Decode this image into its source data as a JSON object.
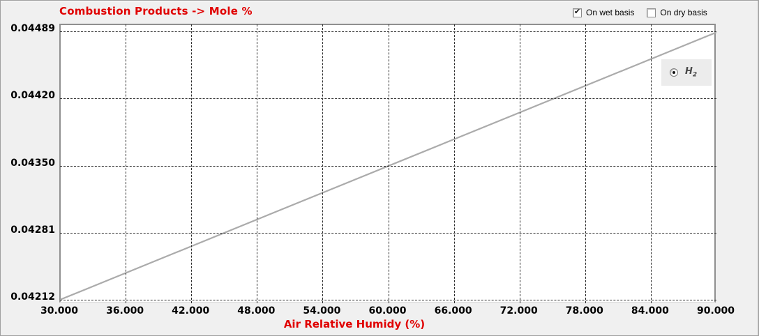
{
  "header": {
    "checkboxes": [
      {
        "label": "On wet basis",
        "checked": true
      },
      {
        "label": "On dry basis",
        "checked": false
      }
    ]
  },
  "legend": {
    "series_main": "H",
    "series_sub": "2",
    "selected": true
  },
  "colors": {
    "accent_red": "#e00000",
    "line_gray": "#ababab",
    "panel_bg": "#f0f0f0",
    "plot_border": "#8f8f8f",
    "gridline": "#2b2b2b",
    "legend_bg": "#ececec"
  },
  "chart_data": {
    "type": "line",
    "title": "Combustion Products -> Mole %",
    "xlabel": "Air Relative Humidy (%)",
    "ylabel": "",
    "series": [
      {
        "name": "H2",
        "x": [
          30,
          60,
          90
        ],
        "y": [
          0.04212,
          0.0435,
          0.04488
        ]
      }
    ],
    "x_ticks": [
      "30.000",
      "36.000",
      "42.000",
      "48.000",
      "54.000",
      "60.000",
      "66.000",
      "72.000",
      "78.000",
      "84.000",
      "90.000"
    ],
    "y_ticks": [
      "0.04489",
      "0.04420",
      "0.04350",
      "0.04281",
      "0.04212"
    ],
    "xlim": [
      30,
      90
    ],
    "ylim": [
      0.04212,
      0.04489
    ],
    "grid": "dashed",
    "legend_position": "upper-right",
    "line_color": "#ababab"
  }
}
